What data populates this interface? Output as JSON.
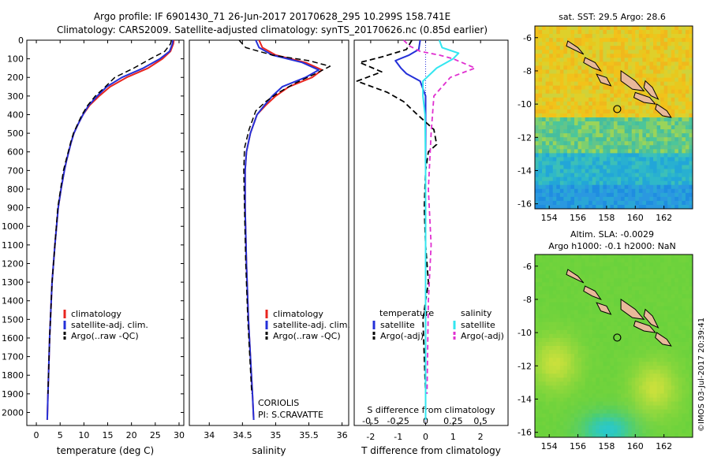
{
  "header": {
    "line1": "Argo profile: IF 6901430_71 26-Jun-2017 20170628_295 10.299S 158.741E",
    "line2": "Climatology: CARS2009. Satellite-adjusted climatology: synTS_20170626.nc (0.85d earlier)"
  },
  "colors": {
    "climatology": "#e8251f",
    "satellite": "#2430d8",
    "argo": "#000000",
    "salinity_satellite": "#33e6f0",
    "salinity_argo": "#e030d0",
    "land": "#e8b99a"
  },
  "chart_data": [
    {
      "type": "line",
      "xlabel": "temperature (deg C)",
      "ylabel": "",
      "xlim": [
        -2,
        31
      ],
      "ylim": [
        2070,
        0
      ],
      "xticks": [
        0,
        5,
        10,
        15,
        20,
        25,
        30
      ],
      "yticks": [
        0,
        100,
        200,
        300,
        400,
        500,
        600,
        700,
        800,
        900,
        1000,
        1100,
        1200,
        1300,
        1400,
        1500,
        1600,
        1700,
        1800,
        1900,
        2000
      ],
      "legend": [
        "climatology",
        "satellite-adj. clim.",
        "Argo(..raw -QC)"
      ],
      "series": [
        {
          "name": "climatology",
          "x": [
            28.9,
            28.8,
            28.2,
            26.5,
            23.5,
            19,
            15.5,
            13.2,
            11.2,
            9.8,
            8.8,
            7.9,
            7.3,
            6.8,
            6.3,
            5.9,
            5.2,
            4.6,
            3.9,
            3.3,
            2.8,
            2.45,
            2.3
          ],
          "depth": [
            0,
            20,
            60,
            100,
            150,
            200,
            250,
            300,
            350,
            400,
            450,
            500,
            550,
            600,
            650,
            700,
            800,
            900,
            1100,
            1300,
            1600,
            1900,
            2040
          ]
        },
        {
          "name": "satellite-adj. clim.",
          "x": [
            28.7,
            28.6,
            28.0,
            26.0,
            22.5,
            18,
            14.8,
            12.8,
            11.0,
            9.8,
            8.8,
            7.9,
            7.3,
            6.8,
            6.3,
            5.9,
            5.2,
            4.6,
            3.9,
            3.3,
            2.8,
            2.45,
            2.3
          ],
          "depth": [
            0,
            20,
            60,
            100,
            150,
            200,
            250,
            300,
            350,
            400,
            450,
            500,
            550,
            600,
            650,
            700,
            800,
            900,
            1100,
            1300,
            1600,
            1900,
            2040
          ]
        },
        {
          "name": "Argo(..raw -QC)",
          "x": [
            28.4,
            28.2,
            27.0,
            24.0,
            20.5,
            16.5,
            14.5,
            12.4,
            10.8,
            9.6,
            8.7,
            7.8,
            7.2,
            6.7,
            6.2,
            5.7,
            5.1,
            4.5,
            3.9,
            3.3,
            2.8,
            2.45
          ],
          "depth": [
            0,
            20,
            60,
            100,
            150,
            200,
            250,
            300,
            350,
            400,
            450,
            500,
            550,
            600,
            650,
            700,
            800,
            900,
            1100,
            1300,
            1600,
            1900
          ]
        }
      ]
    },
    {
      "type": "line",
      "xlabel": "salinity",
      "xlim": [
        33.7,
        36.1
      ],
      "ylim": [
        2070,
        0
      ],
      "xticks": [
        34,
        34.5,
        35,
        35.5,
        36
      ],
      "legend": [
        "climatology",
        "satellite-adj. clim.",
        "Argo(..raw -QC)"
      ],
      "annotations": [
        "CORIOLIS",
        "PI: S.CRAVATTE"
      ],
      "series": [
        {
          "name": "climatology",
          "x": [
            34.75,
            34.8,
            35.0,
            35.45,
            35.7,
            35.55,
            35.2,
            35.0,
            34.85,
            34.72,
            34.62,
            34.56,
            34.54,
            34.54,
            34.56,
            34.59,
            34.62,
            34.65,
            34.67
          ],
          "depth": [
            0,
            40,
            80,
            120,
            160,
            200,
            250,
            300,
            350,
            400,
            500,
            600,
            700,
            900,
            1200,
            1500,
            1700,
            1900,
            2040
          ]
        },
        {
          "name": "satellite-adj. clim.",
          "x": [
            34.7,
            34.75,
            34.95,
            35.4,
            35.65,
            35.45,
            35.1,
            34.95,
            34.83,
            34.72,
            34.62,
            34.56,
            34.54,
            34.54,
            34.56,
            34.59,
            34.62,
            34.65,
            34.67
          ],
          "depth": [
            0,
            40,
            80,
            120,
            160,
            200,
            250,
            300,
            350,
            400,
            500,
            600,
            700,
            900,
            1200,
            1500,
            1700,
            1900,
            2040
          ]
        },
        {
          "name": "Argo(..raw -QC)",
          "x": [
            34.45,
            34.55,
            34.95,
            35.5,
            35.82,
            35.6,
            35.3,
            35.05,
            34.85,
            34.7,
            34.6,
            34.53,
            34.52,
            34.53,
            34.55,
            34.58,
            34.61,
            34.64
          ],
          "depth": [
            0,
            40,
            80,
            110,
            140,
            180,
            230,
            280,
            330,
            380,
            480,
            580,
            700,
            900,
            1200,
            1500,
            1700,
            1900
          ]
        }
      ]
    },
    {
      "type": "line",
      "xlabel": "T difference from climatology",
      "x2label": "S difference from climatology",
      "xlim": [
        -2.6,
        3.0
      ],
      "ylim": [
        2070,
        0
      ],
      "xticks": [
        -2,
        -1,
        0,
        1,
        2
      ],
      "x2ticks": [
        -0.5,
        -0.25,
        0,
        0.25,
        0.5
      ],
      "x2tick_labels": [
        "-0.5",
        "-0.25",
        "0",
        "0.25",
        "0.5"
      ],
      "legend_headers": [
        "temperature",
        "salinity"
      ],
      "legend": [
        "satellite",
        "Argo(-adj)",
        "satellite",
        "Argo(-adj)"
      ],
      "series": [
        {
          "name": "satellite",
          "x": [
            -0.2,
            -0.25,
            -0.6,
            -1.1,
            -0.9,
            -0.7,
            -0.2,
            0,
            0,
            0,
            0,
            0,
            0
          ],
          "depth": [
            0,
            50,
            80,
            110,
            150,
            180,
            220,
            300,
            500,
            900,
            1300,
            1700,
            2040
          ]
        },
        {
          "name": "Argo(-adj)",
          "x": [
            -0.5,
            -0.7,
            -1.6,
            -2.4,
            -1.6,
            -2.5,
            -1.4,
            -0.8,
            -0.3,
            0.3,
            0.4,
            0.1,
            0,
            -0.05,
            0,
            0.1,
            -0.1,
            0
          ],
          "depth": [
            0,
            50,
            90,
            120,
            170,
            220,
            280,
            330,
            400,
            480,
            560,
            600,
            700,
            900,
            1100,
            1300,
            1500,
            1900
          ]
        },
        {
          "name": "satellite",
          "x": [
            0.5,
            0.6,
            1.2,
            1.0,
            0.4,
            -0.1,
            -0.1,
            -0.02,
            0,
            0,
            0,
            0
          ],
          "depth": [
            0,
            40,
            70,
            100,
            150,
            220,
            300,
            400,
            700,
            1100,
            1500,
            2040
          ]
        },
        {
          "name": "Argo(-adj)",
          "x": [
            -0.8,
            -0.6,
            -0.2,
            0.5,
            1.0,
            1.8,
            0.9,
            0.3,
            0.2,
            0.1,
            0.2,
            0.1,
            0.05
          ],
          "depth": [
            0,
            30,
            60,
            80,
            100,
            150,
            200,
            300,
            500,
            800,
            1100,
            1400,
            1900
          ]
        }
      ]
    },
    {
      "type": "heatmap",
      "title": "sat. SST: 29.5 Argo: 28.6",
      "xticks": [
        154,
        156,
        158,
        160,
        162
      ],
      "yticks": [
        -6,
        -8,
        -10,
        -12,
        -14,
        -16
      ],
      "xlim": [
        153,
        164
      ],
      "ylim": [
        -16.3,
        -5.3
      ],
      "marker": {
        "lon": 158.741,
        "lat": -10.299
      }
    },
    {
      "type": "heatmap",
      "title": "Altim. SLA: -0.0029",
      "subtitle": "Argo h1000: -0.1 h2000: NaN",
      "xticks": [
        154,
        156,
        158,
        160,
        162
      ],
      "yticks": [
        -6,
        -8,
        -10,
        -12,
        -14,
        -16
      ],
      "xlim": [
        153,
        164
      ],
      "ylim": [
        -16.3,
        -5.3
      ],
      "marker": {
        "lon": 158.741,
        "lat": -10.299
      }
    }
  ],
  "footer": {
    "credit": "©IMOS 03-Jul-2017 20:39:41"
  }
}
